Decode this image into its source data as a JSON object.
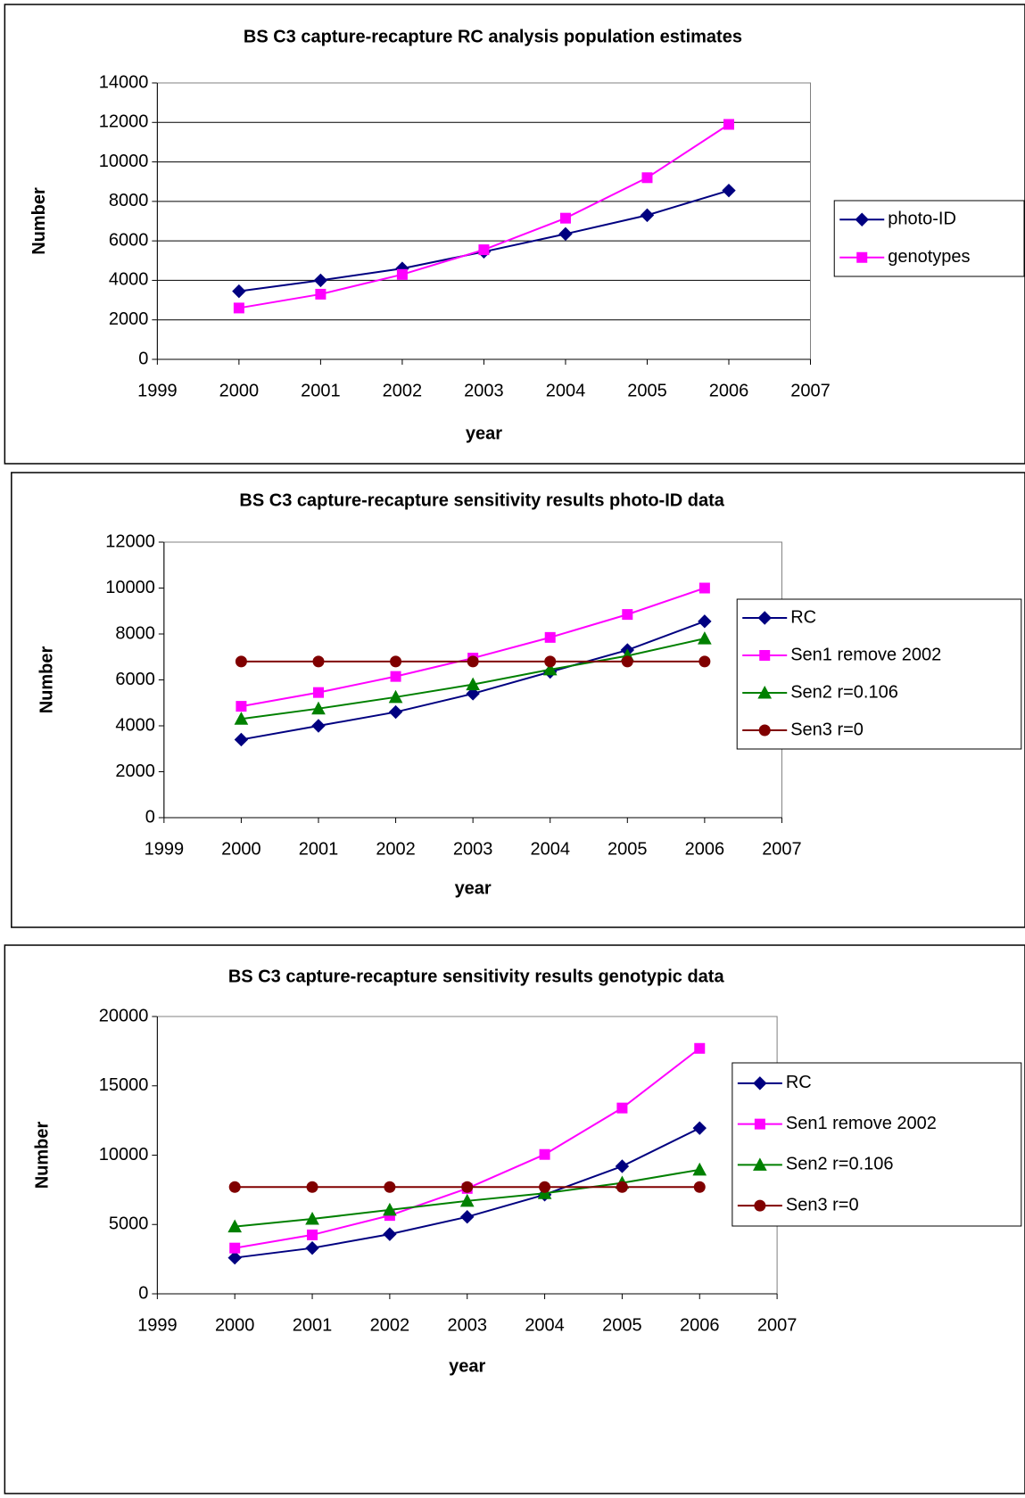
{
  "chart_data": [
    {
      "type": "line",
      "title": "BS C3  capture-recapture RC analysis population estimates",
      "x_label": "year",
      "y_label": "Number",
      "x": [
        2000,
        2001,
        2002,
        2003,
        2004,
        2005,
        2006
      ],
      "xlim": [
        1999,
        2007
      ],
      "xticks": [
        1999,
        2000,
        2001,
        2002,
        2003,
        2004,
        2005,
        2006,
        2007
      ],
      "ylim": [
        0,
        14000
      ],
      "yticks": [
        0,
        2000,
        4000,
        6000,
        8000,
        10000,
        12000,
        14000
      ],
      "grid": true,
      "legend": "right",
      "series": [
        {
          "name": "photo-ID",
          "color": "#000080",
          "marker": "diamond",
          "values": [
            3450,
            4000,
            4600,
            5450,
            6350,
            7300,
            8550
          ]
        },
        {
          "name": "genotypes",
          "color": "#ff00ff",
          "marker": "square",
          "values": [
            2600,
            3300,
            4300,
            5550,
            7150,
            9200,
            11900
          ]
        }
      ]
    },
    {
      "type": "line",
      "title": "BS C3 capture-recapture sensitivity results photo-ID data",
      "x_label": "year",
      "y_label": "Number",
      "x": [
        2000,
        2001,
        2002,
        2003,
        2004,
        2005,
        2006
      ],
      "xlim": [
        1999,
        2007
      ],
      "xticks": [
        1999,
        2000,
        2001,
        2002,
        2003,
        2004,
        2005,
        2006,
        2007
      ],
      "ylim": [
        0,
        12000
      ],
      "yticks": [
        0,
        2000,
        4000,
        6000,
        8000,
        10000,
        12000
      ],
      "grid": false,
      "legend": "right",
      "series": [
        {
          "name": "RC",
          "color": "#000080",
          "marker": "diamond",
          "values": [
            3400,
            4000,
            4600,
            5400,
            6350,
            7300,
            8550
          ]
        },
        {
          "name": "Sen1 remove 2002",
          "color": "#ff00ff",
          "marker": "square",
          "values": [
            4850,
            5450,
            6150,
            6950,
            7850,
            8850,
            10000
          ]
        },
        {
          "name": "Sen2 r=0.106",
          "color": "#008000",
          "marker": "triangle",
          "values": [
            4300,
            4750,
            5250,
            5800,
            6450,
            7050,
            7800
          ]
        },
        {
          "name": "Sen3 r=0",
          "color": "#800000",
          "marker": "circle",
          "values": [
            6800,
            6800,
            6800,
            6800,
            6800,
            6800,
            6800
          ]
        }
      ]
    },
    {
      "type": "line",
      "title": "BS C3 capture-recapture sensitivity results genotypic data",
      "x_label": "year",
      "y_label": "Number",
      "x": [
        2000,
        2001,
        2002,
        2003,
        2004,
        2005,
        2006
      ],
      "xlim": [
        1999,
        2007
      ],
      "xticks": [
        1999,
        2000,
        2001,
        2002,
        2003,
        2004,
        2005,
        2006,
        2007
      ],
      "ylim": [
        0,
        20000
      ],
      "yticks": [
        0,
        5000,
        10000,
        15000,
        20000
      ],
      "grid": false,
      "legend": "right",
      "series": [
        {
          "name": "RC",
          "color": "#000080",
          "marker": "diamond",
          "values": [
            2600,
            3300,
            4300,
            5550,
            7150,
            9200,
            11950
          ]
        },
        {
          "name": "Sen1 remove 2002",
          "color": "#ff00ff",
          "marker": "square",
          "values": [
            3300,
            4250,
            5650,
            7600,
            10050,
            13400,
            17700
          ]
        },
        {
          "name": "Sen2 r=0.106",
          "color": "#008000",
          "marker": "triangle",
          "values": [
            4850,
            5400,
            6050,
            6700,
            7250,
            8000,
            8950
          ]
        },
        {
          "name": "Sen3 r=0",
          "color": "#800000",
          "marker": "circle",
          "values": [
            7700,
            7700,
            7700,
            7700,
            7700,
            7700,
            7700
          ]
        }
      ]
    }
  ]
}
